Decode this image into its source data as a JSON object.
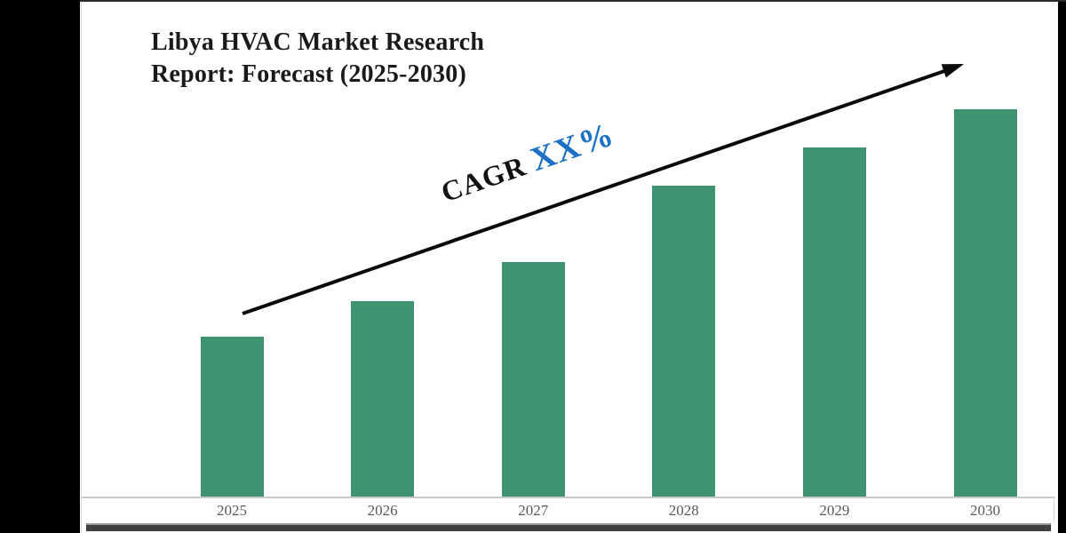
{
  "header": {
    "title_line1": "Libya HVAC Market Research",
    "title_line2": "Report: Forecast (2025-2030)"
  },
  "annotation": {
    "cagr_label": "CAGR",
    "cagr_value": "XX%"
  },
  "chart_data": {
    "type": "bar",
    "title": "Libya HVAC Market Research Report: Forecast (2025-2030)",
    "categories": [
      "2025",
      "2026",
      "2027",
      "2028",
      "2029",
      "2030"
    ],
    "values": [
      181,
      221,
      265,
      351,
      394,
      437
    ],
    "values_note": "no numeric y-axis shown; values are relative bar heights in pixels (2025 lowest, 2030 tallest, steady growth)",
    "annotation": "CAGR XX%",
    "trend": "upward straight arrow from above 2025 bar to top right",
    "bar_color": "#3E9470",
    "xlabel": "",
    "ylabel": "",
    "ylim": [
      0,
      480
    ],
    "grid": false,
    "legend": false
  },
  "colors": {
    "bar_green": "#3E9470",
    "cagr_blue": "#1C70C5",
    "title_black": "#1A1A1A",
    "axis_label_gray": "#5A5A5A",
    "axis_line_gray": "#C9C9C9",
    "arrow_black": "#0A0A0A"
  }
}
